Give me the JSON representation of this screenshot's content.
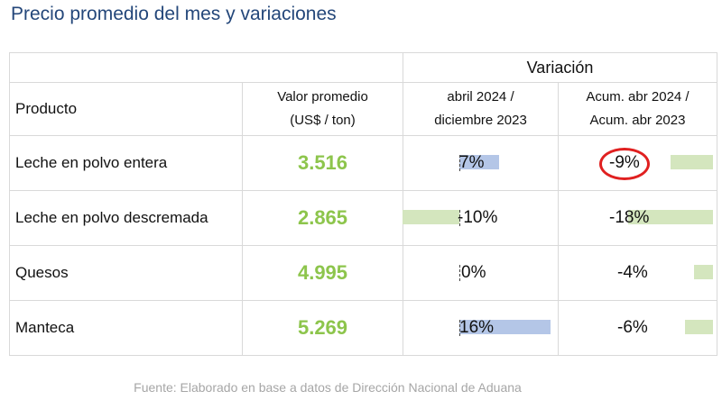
{
  "title": "Precio promedio del mes y variaciones",
  "header": {
    "variacion": "Variación",
    "producto": "Producto",
    "valor_line1": "Valor promedio",
    "valor_line2": "(US$ / ton)",
    "var1_line1": "abril 2024 /",
    "var1_line2": "diciembre 2023",
    "var2_line1": "Acum. abr 2024 /",
    "var2_line2": "Acum. abr 2023"
  },
  "rows": [
    {
      "producto": "Leche en polvo entera",
      "valor": "3.516",
      "var1": "7%",
      "var1_value": 7,
      "var2": "-9%",
      "var2_value": -9
    },
    {
      "producto": "Leche en polvo descremada",
      "valor": "2.865",
      "var1": "-10%",
      "var1_value": -10,
      "var2": "-18%",
      "var2_value": -18
    },
    {
      "producto": "Quesos",
      "valor": "4.995",
      "var1": "0%",
      "var1_value": 0,
      "var2": "-4%",
      "var2_value": -4
    },
    {
      "producto": "Manteca",
      "valor": "5.269",
      "var1": "16%",
      "var1_value": 16,
      "var2": "-6%",
      "var2_value": -6
    }
  ],
  "highlight": {
    "row": 0,
    "column": "var2"
  },
  "colors": {
    "title": "#24477a",
    "value": "#8dc54c",
    "bar_positive": "#b4c6e7",
    "bar_negative": "#d4e6be",
    "circle": "#e02020",
    "source": "#a6a6a6"
  },
  "source": "Fuente: Elaborado en base a datos de Dirección Nacional de Aduana"
}
